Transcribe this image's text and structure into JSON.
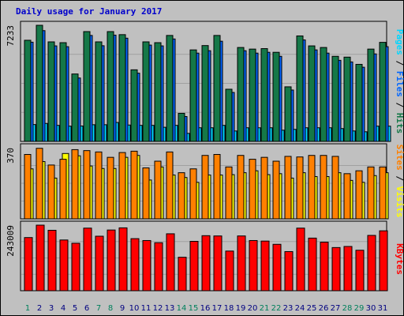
{
  "chart_data": [
    {
      "type": "bar",
      "panel": "pages-files-hits",
      "title": "Daily usage for January 2017",
      "categories": [
        "1",
        "2",
        "3",
        "4",
        "5",
        "6",
        "7",
        "8",
        "9",
        "10",
        "11",
        "12",
        "13",
        "14",
        "15",
        "16",
        "17",
        "18",
        "19",
        "20",
        "21",
        "22",
        "23",
        "24",
        "25",
        "26",
        "27",
        "28",
        "29",
        "30",
        "31"
      ],
      "max_label": "7233",
      "ylim": [
        0,
        7233
      ],
      "series": [
        {
          "name": "Hits",
          "color": "#157848",
          "values": [
            6300,
            7233,
            6200,
            6150,
            4200,
            6840,
            6200,
            6840,
            6650,
            4460,
            6200,
            6150,
            6600,
            1750,
            5700,
            5970,
            6600,
            3250,
            5850,
            5750,
            5780,
            5550,
            3400,
            6570,
            5950,
            5850,
            5300,
            5250,
            4800,
            5750,
            6170
          ]
        },
        {
          "name": "Files",
          "color": "#0066ff",
          "values": [
            6180,
            6900,
            5950,
            5900,
            3950,
            6600,
            5960,
            6620,
            6430,
            4250,
            6000,
            5950,
            6380,
            1550,
            5500,
            5650,
            6240,
            3050,
            5650,
            5500,
            5550,
            5300,
            3200,
            6320,
            5700,
            5500,
            5050,
            4950,
            4620,
            5450,
            5900
          ]
        },
        {
          "name": "Pages",
          "color": "#00d6ff",
          "values": [
            1050,
            1120,
            1000,
            950,
            960,
            1040,
            1040,
            1180,
            1020,
            1000,
            1000,
            880,
            1000,
            500,
            850,
            850,
            1000,
            650,
            850,
            850,
            850,
            700,
            750,
            850,
            850,
            850,
            800,
            650,
            600,
            950,
            950
          ]
        }
      ],
      "side_labels": [
        "Pages",
        "Files",
        "Hits"
      ],
      "side_separator": " / "
    },
    {
      "type": "bar",
      "panel": "sites-visits",
      "categories": [
        "1",
        "2",
        "3",
        "4",
        "5",
        "6",
        "7",
        "8",
        "9",
        "10",
        "11",
        "12",
        "13",
        "14",
        "15",
        "16",
        "17",
        "18",
        "19",
        "20",
        "21",
        "22",
        "23",
        "24",
        "25",
        "26",
        "27",
        "28",
        "29",
        "30",
        "31"
      ],
      "max_label": "370",
      "ylim": [
        0,
        370
      ],
      "series": [
        {
          "name": "Sites",
          "color": "#ff8000",
          "values": [
            335,
            367,
            280,
            310,
            360,
            355,
            348,
            320,
            345,
            352,
            265,
            300,
            348,
            240,
            260,
            330,
            335,
            270,
            330,
            310,
            320,
            300,
            325,
            322,
            330,
            330,
            325,
            235,
            250,
            270,
            270
          ]
        },
        {
          "name": "Visits",
          "color": "#ffff00",
          "values": [
            260,
            298,
            212,
            340,
            328,
            275,
            262,
            262,
            320,
            330,
            202,
            270,
            228,
            215,
            190,
            228,
            228,
            230,
            240,
            250,
            230,
            235,
            212,
            240,
            220,
            220,
            240,
            200,
            190,
            225,
            240
          ]
        }
      ],
      "side_labels": [
        "Sites",
        "Visits"
      ],
      "side_separator": " / "
    },
    {
      "type": "bar",
      "panel": "kbytes",
      "categories": [
        "1",
        "2",
        "3",
        "4",
        "5",
        "6",
        "7",
        "8",
        "9",
        "10",
        "11",
        "12",
        "13",
        "14",
        "15",
        "16",
        "17",
        "18",
        "19",
        "20",
        "21",
        "22",
        "23",
        "24",
        "25",
        "26",
        "27",
        "28",
        "29",
        "30",
        "31"
      ],
      "max_label": "243009",
      "ylim": [
        0,
        243009
      ],
      "series": [
        {
          "name": "KBytes",
          "color": "#ff0000",
          "values": [
            197000,
            243009,
            224000,
            188000,
            176000,
            232000,
            202000,
            225000,
            233000,
            193000,
            186000,
            178000,
            211000,
            124000,
            183000,
            204000,
            203000,
            147000,
            203000,
            186000,
            184000,
            172000,
            145000,
            232000,
            195000,
            180000,
            160000,
            164000,
            150000,
            205000,
            222000
          ]
        }
      ],
      "side_labels": [
        "KBytes"
      ],
      "side_separator": ""
    }
  ],
  "weekend_days": [
    1,
    7,
    8,
    14,
    15,
    21,
    22,
    28,
    29
  ],
  "colors": {
    "panel_bg": "#c0c0c0",
    "plot_bg": "#c0c0c0",
    "gridline": "#a0a0a0",
    "bar_outline": "#000000",
    "title": "#0000cc",
    "weekday_label": "#000080",
    "weekend_label": "#00805c",
    "pages_label": "#00d6ff",
    "files_label": "#0066ff",
    "hits_label": "#157848",
    "sites_label": "#ff8000",
    "visits_label": "#ffff00",
    "kbytes_label": "#ff0000",
    "separator_label": "#000000"
  }
}
